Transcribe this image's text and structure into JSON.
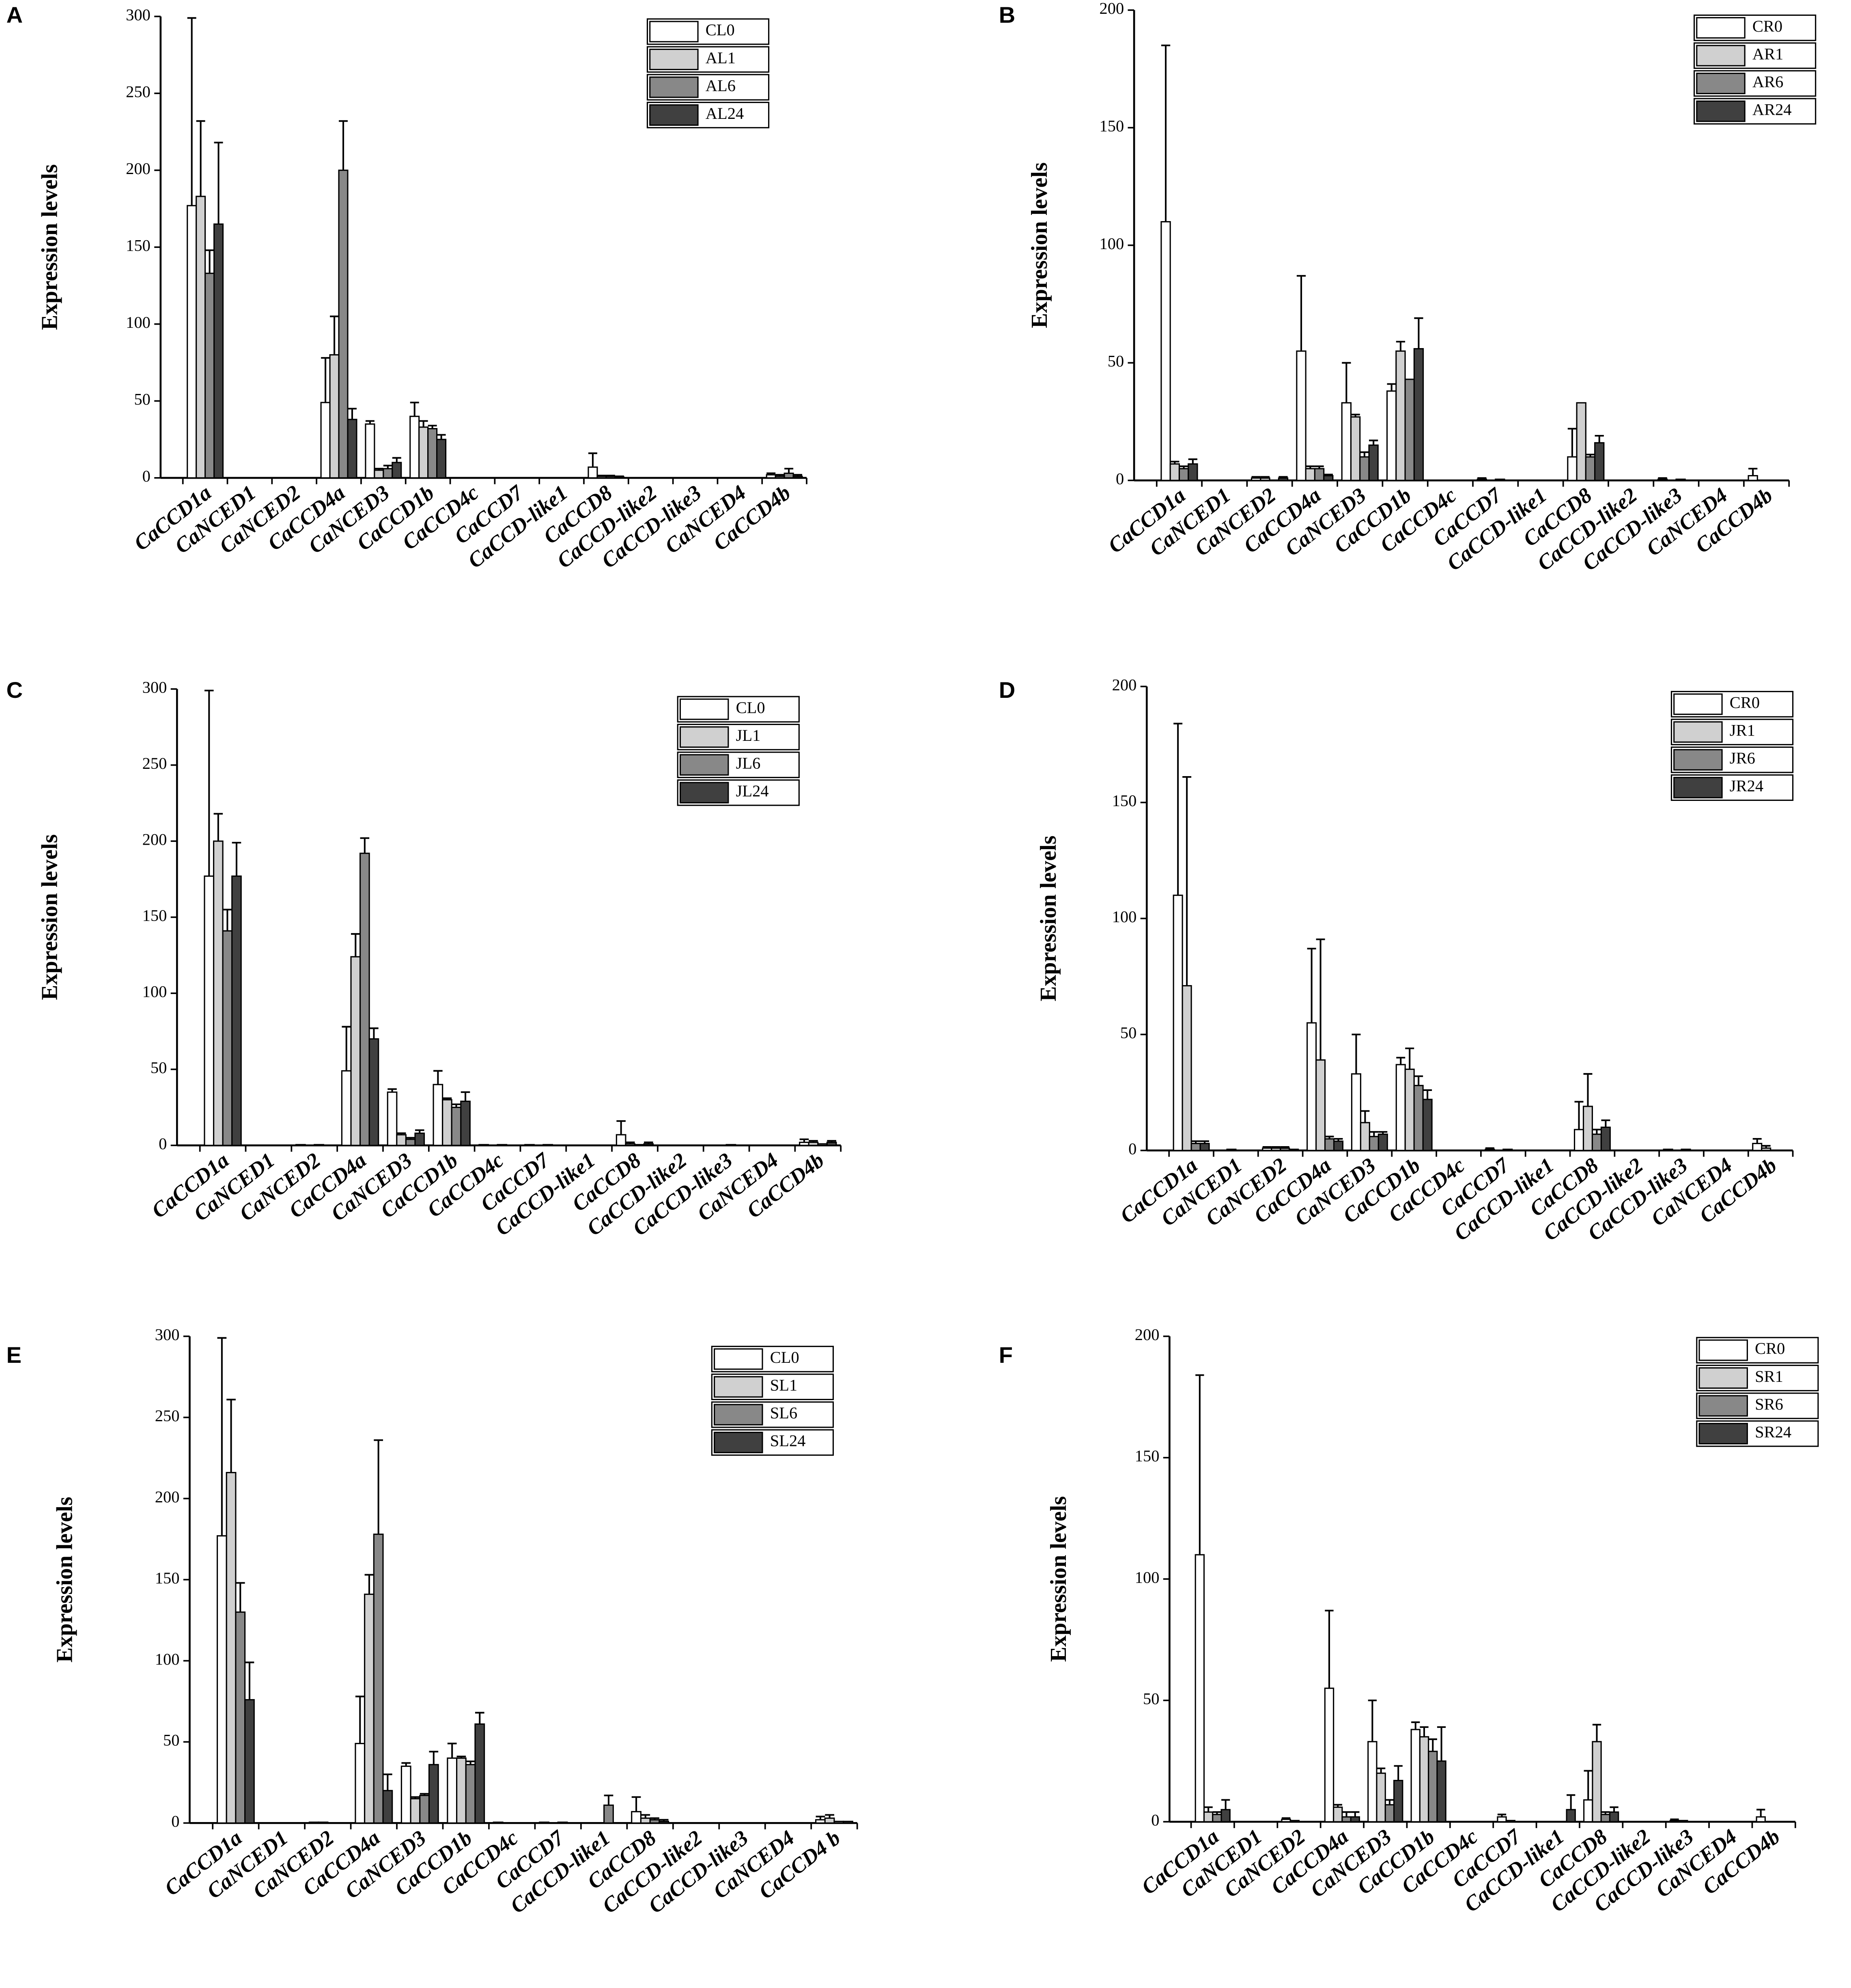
{
  "chart_data": [
    {
      "type": "bar",
      "panel": "A",
      "y_label": "Expression levels",
      "legend": "upper right",
      "ylim": [
        0,
        300
      ],
      "yticks": [
        0,
        50,
        100,
        150,
        200,
        250,
        300
      ],
      "categories": [
        "CaCCD1a",
        "CaNCED1",
        "CaNCED2",
        "CaCCD4a",
        "CaNCED3",
        "CaCCD1b",
        "CaCCD4c",
        "CaCCD7",
        "CaCCD-like1",
        "CaCCD8",
        "CaCCD-like2",
        "CaCCD-like3",
        "CaNCED4",
        "CaCCD4b"
      ],
      "series": [
        {
          "name": "CL0",
          "color": "#ffffff",
          "values": [
            177,
            0,
            0,
            49,
            35,
            40,
            0,
            0,
            0,
            7,
            0,
            0,
            0,
            2
          ],
          "errors": [
            122,
            0,
            0,
            29,
            2,
            9,
            0,
            0,
            0,
            9,
            0,
            0,
            0,
            1
          ]
        },
        {
          "name": "AL1",
          "color": "#d0d0d0",
          "values": [
            183,
            0,
            0,
            80,
            5,
            33,
            0,
            0,
            0,
            1,
            0,
            0,
            0,
            1
          ],
          "errors": [
            49,
            0,
            0,
            25,
            1,
            4,
            0,
            0,
            0,
            0.5,
            0,
            0,
            0,
            1
          ]
        },
        {
          "name": "AL6",
          "color": "#888888",
          "values": [
            133,
            0,
            0,
            200,
            6,
            32,
            0,
            0,
            0,
            1,
            0,
            0,
            0,
            3
          ],
          "errors": [
            15,
            0,
            0,
            32,
            2,
            2,
            0,
            0,
            0,
            0.5,
            0,
            0,
            0,
            3
          ]
        },
        {
          "name": "AL24",
          "color": "#404040",
          "values": [
            165,
            0,
            0,
            38,
            10,
            25,
            0,
            0,
            0,
            0.5,
            0,
            0,
            0,
            1
          ],
          "errors": [
            53,
            0,
            0,
            7,
            3,
            3,
            0,
            0,
            0,
            0.5,
            0,
            0,
            0,
            1
          ]
        }
      ]
    },
    {
      "type": "bar",
      "panel": "B",
      "y_label": "Expression levels",
      "legend": "upper right",
      "ylim": [
        0,
        200
      ],
      "yticks": [
        0,
        50,
        100,
        150,
        200
      ],
      "categories": [
        "CaCCD1a",
        "CaNCED1",
        "CaNCED2",
        "CaCCD4a",
        "CaNCED3",
        "CaCCD1b",
        "CaCCD4c",
        "CaCCD7",
        "CaCCD-like1",
        "CaCCD8",
        "CaCCD-like2",
        "CaCCD-like3",
        "CaNCED4",
        "CaCCD4b"
      ],
      "series": [
        {
          "name": "CR0",
          "color": "#ffffff",
          "values": [
            110,
            0,
            1,
            55,
            33,
            38,
            0,
            0.5,
            0,
            10,
            0,
            0.5,
            0,
            2
          ],
          "errors": [
            75,
            0,
            0.5,
            32,
            17,
            3,
            0,
            0.5,
            0,
            12,
            0,
            0.5,
            0,
            3
          ]
        },
        {
          "name": "AR1",
          "color": "#d0d0d0",
          "values": [
            7,
            0,
            1,
            5,
            27,
            55,
            0,
            0,
            0,
            33,
            0,
            0,
            0,
            0
          ],
          "errors": [
            1,
            0,
            0.5,
            1,
            1,
            4,
            0,
            0,
            0,
            0,
            0,
            0,
            0,
            0
          ]
        },
        {
          "name": "AR6",
          "color": "#888888",
          "values": [
            5,
            0,
            0,
            5,
            10,
            43,
            0,
            0.5,
            0,
            10,
            0,
            0.5,
            0,
            0
          ],
          "errors": [
            1,
            0,
            0,
            1,
            2,
            0,
            0,
            0,
            0,
            1,
            0,
            0,
            0,
            0
          ]
        },
        {
          "name": "AR24",
          "color": "#404040",
          "values": [
            7,
            0,
            1,
            2,
            15,
            56,
            0,
            0,
            0,
            16,
            0,
            0,
            0,
            0
          ],
          "errors": [
            2,
            0,
            0.5,
            0.5,
            2,
            13,
            0,
            0,
            0,
            3,
            0,
            0,
            0,
            0
          ]
        }
      ]
    },
    {
      "type": "bar",
      "panel": "C",
      "y_label": "Expression levels",
      "legend": "upper right",
      "ylim": [
        0,
        300
      ],
      "yticks": [
        0,
        50,
        100,
        150,
        200,
        250,
        300
      ],
      "categories": [
        "CaCCD1a",
        "CaNCED1",
        "CaNCED2",
        "CaCCD4a",
        "CaNCED3",
        "CaCCD1b",
        "CaCCD4c",
        "CaCCD7",
        "CaCCD-like1",
        "CaCCD8",
        "CaCCD-like2",
        "CaCCD-like3",
        "CaNCED4",
        "CaCCD4b"
      ],
      "series": [
        {
          "name": "CL0",
          "color": "#ffffff",
          "values": [
            177,
            0,
            0.5,
            49,
            35,
            40,
            0.5,
            0.5,
            0,
            7,
            0,
            0,
            0,
            2
          ],
          "errors": [
            122,
            0,
            0,
            29,
            2,
            9,
            0,
            0,
            0,
            9,
            0,
            0,
            0,
            2
          ]
        },
        {
          "name": "JL1",
          "color": "#d0d0d0",
          "values": [
            200,
            0,
            0,
            124,
            7,
            30,
            0,
            0,
            0,
            1,
            0,
            0,
            0,
            2
          ],
          "errors": [
            18,
            0,
            0,
            15,
            1,
            1,
            0,
            0,
            0,
            1,
            0,
            0,
            0,
            1
          ]
        },
        {
          "name": "JL6",
          "color": "#888888",
          "values": [
            141,
            0,
            0.5,
            192,
            4,
            25,
            0.5,
            0.5,
            0,
            0.5,
            0,
            0.5,
            0,
            1
          ],
          "errors": [
            14,
            0,
            0,
            10,
            1,
            2,
            0,
            0,
            0,
            0,
            0,
            0,
            0,
            0
          ]
        },
        {
          "name": "JL24",
          "color": "#404040",
          "values": [
            177,
            0,
            0,
            70,
            8,
            29,
            0,
            0,
            0,
            1,
            0,
            0,
            0,
            2
          ],
          "errors": [
            22,
            0,
            0,
            7,
            2,
            6,
            0,
            0,
            0,
            1,
            0,
            0,
            0,
            1
          ]
        }
      ]
    },
    {
      "type": "bar",
      "panel": "D",
      "y_label": "Expression levels",
      "legend": "upper right",
      "ylim": [
        0,
        200
      ],
      "yticks": [
        0,
        50,
        100,
        150,
        200
      ],
      "categories": [
        "CaCCD1a",
        "CaNCED1",
        "CaNCED2",
        "CaCCD4a",
        "CaNCED3",
        "CaCCD1b",
        "CaCCD4c",
        "CaCCD7",
        "CaCCD-like1",
        "CaCCD8",
        "CaCCD-like2",
        "CaCCD-like3",
        "CaNCED4",
        "CaCCD4b"
      ],
      "series": [
        {
          "name": "CR0",
          "color": "#ffffff",
          "values": [
            110,
            0,
            1,
            55,
            33,
            37,
            0,
            0.5,
            0,
            9,
            0,
            0.5,
            0,
            3
          ],
          "errors": [
            74,
            0,
            0.5,
            32,
            17,
            3,
            0,
            0.5,
            0,
            12,
            0,
            0,
            0,
            2
          ]
        },
        {
          "name": "JR1",
          "color": "#d0d0d0",
          "values": [
            71,
            0.5,
            1,
            39,
            12,
            35,
            0,
            0,
            0,
            19,
            0,
            0,
            0,
            1
          ],
          "errors": [
            90,
            0,
            0.5,
            52,
            5,
            9,
            0,
            0,
            0,
            14,
            0,
            0,
            0,
            1
          ]
        },
        {
          "name": "JR6",
          "color": "#888888",
          "values": [
            3,
            0,
            1,
            5,
            6,
            28,
            0,
            0.5,
            0,
            7,
            0,
            0.5,
            0,
            0
          ],
          "errors": [
            1,
            0,
            0.5,
            1,
            2,
            4,
            0,
            0,
            0,
            2,
            0,
            0,
            0,
            0
          ]
        },
        {
          "name": "JR24",
          "color": "#404040",
          "values": [
            3,
            0,
            0.5,
            4,
            7,
            22,
            0,
            0,
            0,
            10,
            0,
            0,
            0,
            0
          ],
          "errors": [
            1,
            0,
            0,
            1,
            1,
            4,
            0,
            0,
            0,
            3,
            0,
            0,
            0,
            0
          ]
        }
      ]
    },
    {
      "type": "bar",
      "panel": "E",
      "y_label": "Expression levels",
      "legend": "upper right",
      "ylim": [
        0,
        300
      ],
      "yticks": [
        0,
        50,
        100,
        150,
        200,
        250,
        300
      ],
      "categories": [
        "CaCCD1a",
        "CaNCED1",
        "CaNCED2",
        "CaCCD4a",
        "CaNCED3",
        "CaCCD1b",
        "CaCCD4c",
        "CaCCD7",
        "CaCCD-like1",
        "CaCCD8",
        "CaCCD-like2",
        "CaCCD-like3",
        "CaNCED4",
        "CaCCD4 b"
      ],
      "series": [
        {
          "name": "CL0",
          "color": "#ffffff",
          "values": [
            177,
            0,
            0.5,
            49,
            35,
            40,
            0.5,
            0.5,
            0,
            7,
            0,
            0,
            0,
            2
          ],
          "errors": [
            122,
            0,
            0,
            29,
            2,
            9,
            0,
            0,
            0,
            9,
            0,
            0,
            0,
            2
          ]
        },
        {
          "name": "SL1",
          "color": "#d0d0d0",
          "values": [
            216,
            0,
            0.5,
            141,
            15,
            40,
            0,
            0,
            0,
            3,
            0,
            0,
            0,
            3
          ],
          "errors": [
            45,
            0,
            0,
            12,
            1,
            1,
            0,
            0,
            0,
            2,
            0,
            0,
            0,
            2
          ]
        },
        {
          "name": "SL6",
          "color": "#888888",
          "values": [
            130,
            0,
            0,
            178,
            17,
            36,
            0,
            0.5,
            11,
            2,
            0,
            0,
            0,
            1
          ],
          "errors": [
            18,
            0,
            0,
            58,
            1,
            2,
            0,
            0,
            6,
            1,
            0,
            0,
            0,
            0
          ]
        },
        {
          "name": "SL24",
          "color": "#404040",
          "values": [
            76,
            0,
            0,
            20,
            36,
            61,
            0,
            0,
            0,
            1,
            0,
            0,
            0,
            1
          ],
          "errors": [
            23,
            0,
            0,
            10,
            8,
            7,
            0,
            0,
            0,
            1,
            0,
            0,
            0,
            0
          ]
        }
      ]
    },
    {
      "type": "bar",
      "panel": "F",
      "y_label": "Expression levels",
      "legend": "upper right",
      "ylim": [
        0,
        200
      ],
      "yticks": [
        0,
        50,
        100,
        150,
        200
      ],
      "categories": [
        "CaCCD1a",
        "CaNCED1",
        "CaNCED2",
        "CaCCD4a",
        "CaNCED3",
        "CaCCD1b",
        "CaCCD4c",
        "CaCCD7",
        "CaCCD-like1",
        "CaCCD8",
        "CaCCD-like2",
        "CaCCD-like3",
        "CaNCED4",
        "CaCCD4b"
      ],
      "series": [
        {
          "name": "CR0",
          "color": "#ffffff",
          "values": [
            110,
            0,
            1,
            55,
            33,
            38,
            0,
            2,
            0,
            9,
            0,
            0.5,
            0,
            2
          ],
          "errors": [
            74,
            0,
            0.5,
            32,
            17,
            3,
            0,
            1,
            0,
            12,
            0,
            0.5,
            0,
            3
          ]
        },
        {
          "name": "SR1",
          "color": "#d0d0d0",
          "values": [
            4,
            0,
            0.5,
            6,
            20,
            35,
            0,
            0.5,
            0,
            33,
            0,
            0.5,
            0,
            0
          ],
          "errors": [
            2,
            0,
            0,
            1,
            2,
            4,
            0,
            0,
            0,
            7,
            0,
            0,
            0,
            0
          ]
        },
        {
          "name": "SR6",
          "color": "#888888",
          "values": [
            3,
            0,
            0,
            2,
            7,
            29,
            0,
            0,
            0,
            3,
            0,
            0,
            0,
            0
          ],
          "errors": [
            1,
            0,
            0,
            2,
            2,
            5,
            0,
            0,
            0,
            1,
            0,
            0,
            0,
            0
          ]
        },
        {
          "name": "SR24",
          "color": "#404040",
          "values": [
            5,
            0,
            0,
            2,
            17,
            25,
            0,
            0,
            5,
            4,
            0,
            0,
            0,
            0
          ],
          "errors": [
            4,
            0,
            0,
            2,
            6,
            14,
            0,
            0,
            6,
            2,
            0,
            0,
            0,
            0
          ]
        }
      ]
    }
  ]
}
